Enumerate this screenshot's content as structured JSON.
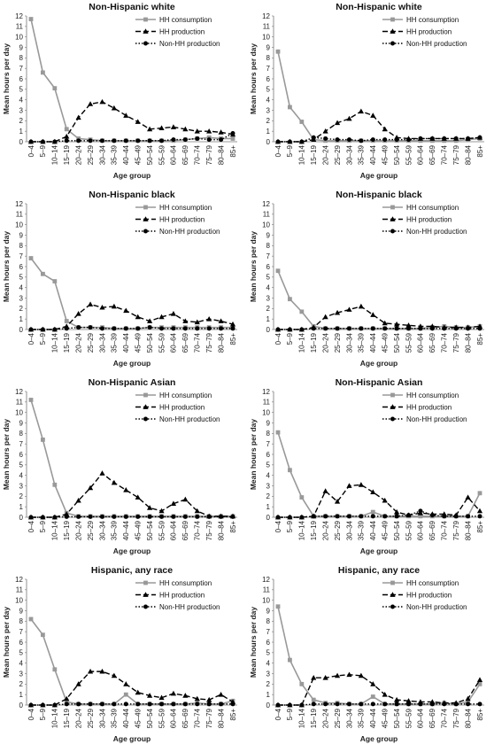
{
  "chart_data": [
    {
      "type": "line",
      "title": "Non-Hispanic white",
      "xlabel": "Age group",
      "ylabel": "Mean hours per day",
      "ylim": [
        0,
        12
      ],
      "yticks": [
        "0",
        "1",
        "2",
        "3",
        "4",
        "5",
        "6",
        "7",
        "8",
        "9",
        "10",
        "11",
        "12"
      ],
      "categories": [
        "0–4",
        "5–9",
        "10–14",
        "15–19",
        "20–24",
        "25–29",
        "30–34",
        "35–39",
        "40–44",
        "45–49",
        "50–54",
        "55–59",
        "60–64",
        "65–69",
        "70–74",
        "75–79",
        "80–84",
        "85+"
      ],
      "legend_position": "top-right",
      "grid": false,
      "series": [
        {
          "name": "HH consumption",
          "color": "#999999",
          "style": "solid",
          "marker": "square",
          "values": [
            11.7,
            6.6,
            5.1,
            1.2,
            0.3,
            0.2,
            0.1,
            0.1,
            0.1,
            0.1,
            0.1,
            0.1,
            0.1,
            0.2,
            0.3,
            0.4,
            0.3,
            0.3
          ]
        },
        {
          "name": "HH production",
          "color": "#000000",
          "style": "dashed",
          "marker": "triangle",
          "values": [
            0,
            0,
            0,
            0.5,
            2.3,
            3.6,
            3.8,
            3.2,
            2.5,
            1.9,
            1.2,
            1.3,
            1.4,
            1.2,
            1.0,
            1.0,
            0.9,
            0.7
          ]
        },
        {
          "name": "Non-HH production",
          "color": "#000000",
          "style": "dotted",
          "marker": "circle",
          "values": [
            0,
            0,
            0,
            0.1,
            0.1,
            0.1,
            0.1,
            0.1,
            0.1,
            0.1,
            0.1,
            0.1,
            0.2,
            0.2,
            0.3,
            0.2,
            0.2,
            0.8
          ]
        }
      ]
    },
    {
      "type": "line",
      "title": "Non-Hispanic white",
      "xlabel": "Age group",
      "ylabel": "Mean hours per day",
      "ylim": [
        0,
        12
      ],
      "yticks": [
        "0",
        "1",
        "2",
        "3",
        "4",
        "5",
        "6",
        "7",
        "8",
        "9",
        "10",
        "11",
        "12"
      ],
      "categories": [
        "0–4",
        "5–9",
        "10–14",
        "15–19",
        "20–24",
        "25–29",
        "30–34",
        "35–39",
        "40–44",
        "45–49",
        "50–54",
        "55–59",
        "60–64",
        "65–69",
        "70–74",
        "75–79",
        "80–84",
        "85+"
      ],
      "legend_position": "top-right",
      "grid": false,
      "series": [
        {
          "name": "HH consumption",
          "color": "#999999",
          "style": "solid",
          "marker": "square",
          "values": [
            8.6,
            3.3,
            1.9,
            0.2,
            0.1,
            0.1,
            0.1,
            0.1,
            0.1,
            0.1,
            0.1,
            0.1,
            0.1,
            0.1,
            0.1,
            0.1,
            0.2,
            0.3
          ]
        },
        {
          "name": "HH production",
          "color": "#000000",
          "style": "dashed",
          "marker": "triangle",
          "values": [
            0,
            0,
            0,
            0.2,
            1.0,
            1.8,
            2.2,
            2.9,
            2.5,
            1.2,
            0.4,
            0.3,
            0.3,
            0.3,
            0.3,
            0.3,
            0.3,
            0.4
          ]
        },
        {
          "name": "Non-HH production",
          "color": "#000000",
          "style": "dotted",
          "marker": "circle",
          "values": [
            0,
            0,
            0,
            0.4,
            0.3,
            0.2,
            0.2,
            0.1,
            0.2,
            0.2,
            0.2,
            0.2,
            0.3,
            0.3,
            0.3,
            0.3,
            0.3,
            0.4
          ]
        }
      ]
    },
    {
      "type": "line",
      "title": "Non-Hispanic black",
      "xlabel": "Age group",
      "ylabel": "Mean hours per day",
      "ylim": [
        0,
        12
      ],
      "yticks": [
        "0",
        "1",
        "2",
        "3",
        "4",
        "5",
        "6",
        "7",
        "8",
        "9",
        "10",
        "11",
        "12"
      ],
      "categories": [
        "0–4",
        "5–9",
        "10–14",
        "15–19",
        "20–24",
        "25–29",
        "30–34",
        "35–39",
        "40–44",
        "45–49",
        "50–54",
        "55–59",
        "60–64",
        "65–69",
        "70–74",
        "75–79",
        "80–84",
        "85+"
      ],
      "legend_position": "top-right",
      "grid": false,
      "series": [
        {
          "name": "HH consumption",
          "color": "#999999",
          "style": "solid",
          "marker": "square",
          "values": [
            6.8,
            5.3,
            4.6,
            0.8,
            0.2,
            0.2,
            0.2,
            0.1,
            0.1,
            0.1,
            0.2,
            0.2,
            0.2,
            0.2,
            0.2,
            0.2,
            0.2,
            0.2
          ]
        },
        {
          "name": "HH production",
          "color": "#000000",
          "style": "dashed",
          "marker": "triangle",
          "values": [
            0,
            0,
            0,
            0.3,
            1.5,
            2.4,
            2.1,
            2.2,
            1.8,
            1.2,
            0.8,
            1.2,
            1.5,
            0.8,
            0.7,
            1.0,
            0.8,
            0.5
          ]
        },
        {
          "name": "Non-HH production",
          "color": "#000000",
          "style": "dotted",
          "marker": "circle",
          "values": [
            0,
            0,
            0,
            0.1,
            0.2,
            0.2,
            0.1,
            0.1,
            0.1,
            0.1,
            0.2,
            0.1,
            0.1,
            0.1,
            0.1,
            0.1,
            0.1,
            0.1
          ]
        }
      ]
    },
    {
      "type": "line",
      "title": "Non-Hispanic black",
      "xlabel": "Age group",
      "ylabel": "Mean hours per day",
      "ylim": [
        0,
        12
      ],
      "yticks": [
        "0",
        "1",
        "2",
        "3",
        "4",
        "5",
        "6",
        "7",
        "8",
        "9",
        "10",
        "11",
        "12"
      ],
      "categories": [
        "0–4",
        "5–9",
        "10–14",
        "15–19",
        "20–24",
        "25–29",
        "30–34",
        "35–39",
        "40–44",
        "45–49",
        "50–54",
        "55–59",
        "60–64",
        "65–69",
        "70–74",
        "75–79",
        "80–84",
        "85+"
      ],
      "legend_position": "top-right",
      "grid": false,
      "series": [
        {
          "name": "HH consumption",
          "color": "#999999",
          "style": "solid",
          "marker": "square",
          "values": [
            5.6,
            2.9,
            1.7,
            0.3,
            0.1,
            0.1,
            0.1,
            0.1,
            0.1,
            0.1,
            0.1,
            0.1,
            0.1,
            0.2,
            0.3,
            0.2,
            0.2,
            0.3
          ]
        },
        {
          "name": "HH production",
          "color": "#000000",
          "style": "dashed",
          "marker": "triangle",
          "values": [
            0,
            0,
            0,
            0.2,
            1.2,
            1.6,
            1.9,
            2.2,
            1.4,
            0.6,
            0.5,
            0.4,
            0.3,
            0.3,
            0.2,
            0.2,
            0.2,
            0.3
          ]
        },
        {
          "name": "Non-HH production",
          "color": "#000000",
          "style": "dotted",
          "marker": "circle",
          "values": [
            0,
            0,
            0,
            0.1,
            0.1,
            0.1,
            0.1,
            0.1,
            0.1,
            0.1,
            0.1,
            0.1,
            0.1,
            0.1,
            0.1,
            0.1,
            0.1,
            0.1
          ]
        }
      ]
    },
    {
      "type": "line",
      "title": "Non-Hispanic Asian",
      "xlabel": "Age group",
      "ylabel": "Mean hours per day",
      "ylim": [
        0,
        12
      ],
      "yticks": [
        "0",
        "1",
        "2",
        "3",
        "4",
        "5",
        "6",
        "7",
        "8",
        "9",
        "10",
        "11",
        "12"
      ],
      "categories": [
        "0–4",
        "5–9",
        "10–14",
        "15–19",
        "20–24",
        "25–29",
        "30–34",
        "35–39",
        "40–44",
        "45–49",
        "50–54",
        "55–59",
        "60–64",
        "65–69",
        "70–74",
        "75–79",
        "80–84",
        "85+"
      ],
      "legend_position": "top-right",
      "grid": false,
      "series": [
        {
          "name": "HH consumption",
          "color": "#999999",
          "style": "solid",
          "marker": "square",
          "values": [
            11.2,
            7.4,
            3.1,
            0.4,
            0.1,
            0.1,
            0.1,
            0.1,
            0.1,
            0.1,
            0.1,
            0.1,
            0.1,
            0.1,
            0.1,
            0.1,
            0.1,
            0.1
          ]
        },
        {
          "name": "HH production",
          "color": "#000000",
          "style": "dashed",
          "marker": "triangle",
          "values": [
            0,
            0,
            0,
            0.3,
            1.6,
            2.8,
            4.2,
            3.3,
            2.6,
            1.9,
            0.9,
            0.6,
            1.3,
            1.7,
            0.6,
            0.1,
            0.1,
            0.1
          ]
        },
        {
          "name": "Non-HH production",
          "color": "#000000",
          "style": "dotted",
          "marker": "circle",
          "values": [
            0,
            0,
            0,
            0.05,
            0.05,
            0.05,
            0.05,
            0.05,
            0.05,
            0.05,
            0.05,
            0.05,
            0.05,
            0.05,
            0.05,
            0.05,
            0.05,
            0.05
          ]
        }
      ]
    },
    {
      "type": "line",
      "title": "Non-Hispanic Asian",
      "xlabel": "Age group",
      "ylabel": "Mean hours per day",
      "ylim": [
        0,
        12
      ],
      "yticks": [
        "0",
        "1",
        "2",
        "3",
        "4",
        "5",
        "6",
        "7",
        "8",
        "9",
        "10",
        "11",
        "12"
      ],
      "categories": [
        "0–4",
        "5–9",
        "10–14",
        "15–19",
        "20–24",
        "25–29",
        "30–34",
        "35–39",
        "40–44",
        "45–49",
        "50–54",
        "55–59",
        "60–64",
        "65–69",
        "70–74",
        "75–79",
        "80–84",
        "85+"
      ],
      "legend_position": "top-right",
      "grid": false,
      "series": [
        {
          "name": "HH consumption",
          "color": "#999999",
          "style": "solid",
          "marker": "square",
          "values": [
            8.1,
            4.5,
            1.9,
            0.1,
            0.1,
            0.1,
            0.1,
            0.1,
            0.5,
            0.1,
            0.1,
            0.1,
            0.1,
            0.1,
            0.1,
            0.1,
            0.1,
            2.3
          ]
        },
        {
          "name": "HH production",
          "color": "#000000",
          "style": "dashed",
          "marker": "triangle",
          "values": [
            0,
            0,
            0,
            0.1,
            2.5,
            1.5,
            3.0,
            3.1,
            2.4,
            1.6,
            0.5,
            0.2,
            0.4,
            0.3,
            0.3,
            0.2,
            1.9,
            0.6
          ]
        },
        {
          "name": "Non-HH production",
          "color": "#000000",
          "style": "dotted",
          "marker": "circle",
          "values": [
            0,
            0,
            0,
            0.1,
            0.1,
            0.1,
            0.1,
            0.1,
            0.1,
            0.1,
            0.1,
            0.2,
            0.6,
            0.2,
            0.1,
            0.1,
            0.1,
            0.1
          ]
        }
      ]
    },
    {
      "type": "line",
      "title": "Hispanic, any race",
      "xlabel": "Age group",
      "ylabel": "Mean hours per day",
      "ylim": [
        0,
        12
      ],
      "yticks": [
        "0",
        "1",
        "2",
        "3",
        "4",
        "5",
        "6",
        "7",
        "8",
        "9",
        "10",
        "11",
        "12"
      ],
      "categories": [
        "0–4",
        "5–9",
        "10–14",
        "15–19",
        "20–24",
        "25–29",
        "30–34",
        "35–39",
        "40–44",
        "45–49",
        "50–54",
        "55–59",
        "60–64",
        "65–69",
        "70–74",
        "75–79",
        "80–84",
        "85+"
      ],
      "legend_position": "top-right",
      "grid": false,
      "series": [
        {
          "name": "HH consumption",
          "color": "#999999",
          "style": "solid",
          "marker": "square",
          "values": [
            8.2,
            6.7,
            3.4,
            0.3,
            0.1,
            0.1,
            0.1,
            0.1,
            1.0,
            0.1,
            0.1,
            0.1,
            0.1,
            0.1,
            0.2,
            0.1,
            0.1,
            0.4
          ]
        },
        {
          "name": "HH production",
          "color": "#000000",
          "style": "dashed",
          "marker": "triangle",
          "values": [
            0,
            0,
            0,
            0.6,
            2.0,
            3.2,
            3.2,
            2.8,
            2.0,
            1.2,
            0.9,
            0.7,
            1.1,
            0.9,
            0.6,
            0.5,
            1.0,
            0.3
          ]
        },
        {
          "name": "Non-HH production",
          "color": "#000000",
          "style": "dotted",
          "marker": "circle",
          "values": [
            0,
            0,
            0,
            0.1,
            0.1,
            0.1,
            0.1,
            0.1,
            0.1,
            0.1,
            0.1,
            0.1,
            0.1,
            0.1,
            0.1,
            0.1,
            0.1,
            0.1
          ]
        }
      ]
    },
    {
      "type": "line",
      "title": "Hispanic, any race",
      "xlabel": "Age group",
      "ylabel": "Mean hours per day",
      "ylim": [
        0,
        12
      ],
      "yticks": [
        "0",
        "1",
        "2",
        "3",
        "4",
        "5",
        "6",
        "7",
        "8",
        "9",
        "10",
        "11",
        "12"
      ],
      "categories": [
        "0–4",
        "5–9",
        "10–14",
        "15–19",
        "20–24",
        "25–29",
        "30–34",
        "35–39",
        "40–44",
        "45–49",
        "50–54",
        "55–59",
        "60–64",
        "65–69",
        "70–74",
        "75–79",
        "80–84",
        "85+"
      ],
      "legend_position": "top-right",
      "grid": false,
      "series": [
        {
          "name": "HH consumption",
          "color": "#999999",
          "style": "solid",
          "marker": "square",
          "values": [
            9.4,
            4.3,
            2.0,
            0.5,
            0.2,
            0.2,
            0.1,
            0.1,
            0.8,
            0.1,
            0.1,
            0.1,
            0.1,
            0.1,
            0.2,
            0.1,
            0.3,
            2.0
          ]
        },
        {
          "name": "HH production",
          "color": "#000000",
          "style": "dashed",
          "marker": "triangle",
          "values": [
            0,
            0,
            0,
            2.6,
            2.6,
            2.8,
            2.9,
            2.8,
            2.0,
            1.0,
            0.5,
            0.4,
            0.3,
            0.3,
            0.2,
            0.2,
            0.6,
            2.4
          ]
        },
        {
          "name": "Non-HH production",
          "color": "#000000",
          "style": "dotted",
          "marker": "circle",
          "values": [
            0,
            0,
            0,
            0.1,
            0.1,
            0.1,
            0.1,
            0.1,
            0.1,
            0.1,
            0.1,
            0.1,
            0.1,
            0.1,
            0.1,
            0.1,
            0.1,
            0.1
          ]
        }
      ]
    }
  ]
}
